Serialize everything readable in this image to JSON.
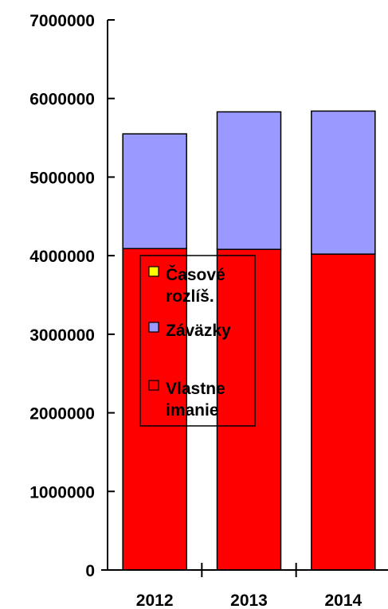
{
  "chart_data": {
    "type": "bar",
    "stacked": true,
    "categories": [
      "2012",
      "2013",
      "2014"
    ],
    "series": [
      {
        "name": "Vlastne imanie",
        "color": "#ff0000",
        "values": [
          4090000,
          4080000,
          4020000
        ]
      },
      {
        "name": "Záväzky",
        "color": "#9999ff",
        "values": [
          1460000,
          1750000,
          1820000
        ]
      },
      {
        "name": "Časové rozlíš.",
        "color": "#ffff00",
        "values": [
          0,
          0,
          0
        ]
      }
    ],
    "y_ticks": [
      "0",
      "1000000",
      "2000000",
      "3000000",
      "4000000",
      "5000000",
      "6000000",
      "7000000"
    ],
    "ylim": [
      0,
      7000000
    ],
    "grid": false,
    "legend_position": "inside-left",
    "legend": [
      {
        "lines": [
          "Časové",
          "rozlíš."
        ],
        "color": "#ffff00"
      },
      {
        "lines": [
          "Záväzky"
        ],
        "color": "#9999ff"
      },
      {
        "lines": [
          "Vlastne",
          "imanie"
        ],
        "color": "#ff0000"
      }
    ]
  }
}
